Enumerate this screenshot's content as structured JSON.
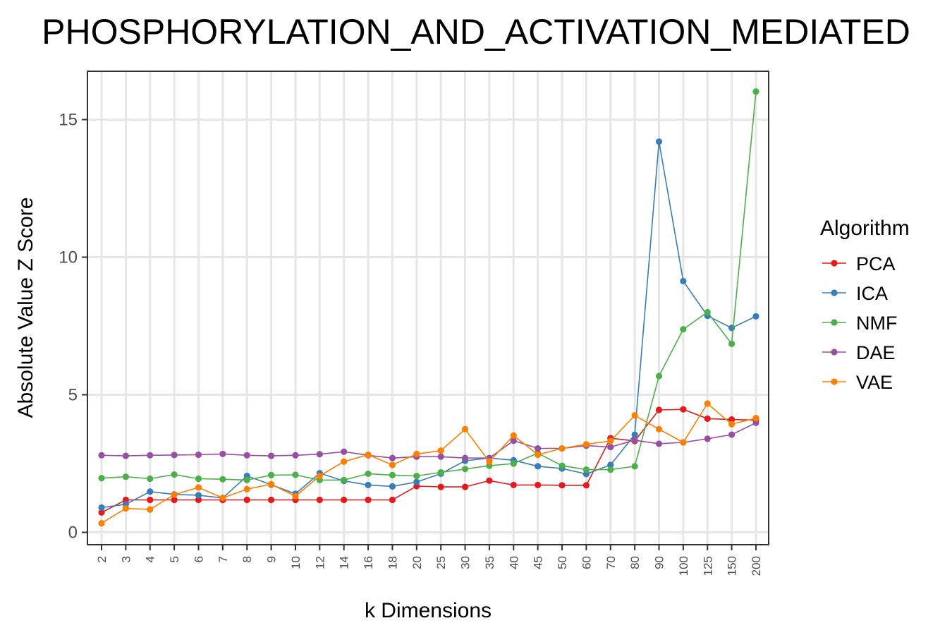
{
  "chart_data": {
    "type": "line",
    "title": "PHOSPHORYLATION_AND_ACTIVATION_MEDIATED",
    "xlabel": "k Dimensions",
    "ylabel": "Absolute Value Z Score",
    "ylim": [
      -0.45,
      16.7
    ],
    "yticks": [
      0,
      5,
      10,
      15
    ],
    "grid": true,
    "legend_title": "Algorithm",
    "legend_position": "right",
    "categories": [
      "2",
      "3",
      "4",
      "5",
      "6",
      "7",
      "8",
      "9",
      "10",
      "12",
      "14",
      "16",
      "18",
      "20",
      "25",
      "30",
      "35",
      "40",
      "45",
      "50",
      "60",
      "70",
      "80",
      "90",
      "100",
      "125",
      "150",
      "200"
    ],
    "series": [
      {
        "name": "PCA",
        "color": "#e41a1c",
        "values": [
          0.72,
          1.18,
          1.18,
          1.18,
          1.18,
          1.18,
          1.18,
          1.18,
          1.18,
          1.18,
          1.18,
          1.18,
          1.18,
          1.68,
          1.65,
          1.65,
          1.88,
          1.72,
          1.72,
          1.71,
          1.71,
          3.42,
          3.32,
          4.45,
          4.47,
          4.13,
          4.1,
          4.08
        ]
      },
      {
        "name": "ICA",
        "color": "#377eb8",
        "values": [
          0.9,
          1.02,
          1.48,
          1.38,
          1.35,
          1.25,
          2.05,
          1.73,
          1.4,
          2.15,
          1.87,
          1.72,
          1.67,
          1.83,
          2.13,
          2.6,
          2.7,
          2.62,
          2.4,
          2.32,
          2.12,
          2.45,
          3.55,
          14.2,
          9.13,
          7.87,
          7.43,
          7.85
        ]
      },
      {
        "name": "NMF",
        "color": "#4daf4a",
        "values": [
          1.97,
          2.02,
          1.95,
          2.1,
          1.95,
          1.93,
          1.9,
          2.08,
          2.09,
          1.9,
          1.9,
          2.13,
          2.08,
          2.05,
          2.18,
          2.3,
          2.42,
          2.5,
          2.88,
          2.42,
          2.28,
          2.28,
          2.4,
          5.68,
          7.38,
          8.0,
          6.85,
          16.02
        ]
      },
      {
        "name": "DAE",
        "color": "#984ea3",
        "values": [
          2.8,
          2.78,
          2.8,
          2.81,
          2.82,
          2.85,
          2.8,
          2.78,
          2.8,
          2.84,
          2.93,
          2.8,
          2.7,
          2.75,
          2.75,
          2.7,
          2.7,
          3.33,
          3.05,
          3.05,
          3.15,
          3.1,
          3.35,
          3.22,
          3.27,
          3.4,
          3.55,
          3.98
        ]
      },
      {
        "name": "VAE",
        "color": "#ff7f00",
        "values": [
          0.33,
          0.87,
          0.83,
          1.37,
          1.63,
          1.25,
          1.57,
          1.75,
          1.31,
          2.05,
          2.57,
          2.82,
          2.45,
          2.85,
          2.97,
          3.75,
          2.57,
          3.52,
          2.82,
          3.05,
          3.2,
          3.32,
          4.25,
          3.75,
          3.27,
          4.68,
          3.93,
          4.15
        ]
      }
    ]
  }
}
